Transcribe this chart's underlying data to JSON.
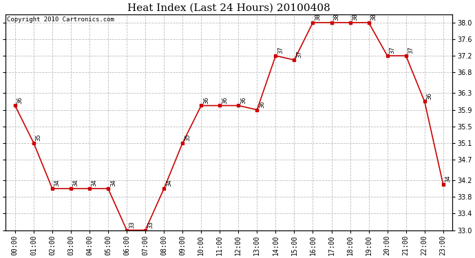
{
  "title": "Heat Index (Last 24 Hours) 20100408",
  "copyright": "Copyright 2010 Cartronics.com",
  "hours": [
    "00:00",
    "01:00",
    "02:00",
    "03:00",
    "04:00",
    "05:00",
    "06:00",
    "07:00",
    "08:00",
    "09:00",
    "10:00",
    "11:00",
    "12:00",
    "13:00",
    "14:00",
    "15:00",
    "16:00",
    "17:00",
    "18:00",
    "19:00",
    "20:00",
    "21:00",
    "22:00",
    "23:00"
  ],
  "values": [
    36.0,
    35.1,
    34.0,
    34.0,
    34.0,
    34.0,
    33.0,
    33.0,
    34.0,
    35.1,
    36.0,
    36.0,
    36.0,
    35.9,
    37.2,
    37.1,
    38.0,
    38.0,
    38.0,
    38.0,
    37.2,
    37.2,
    36.1,
    34.1
  ],
  "labels": [
    "36",
    "35",
    "34",
    "34",
    "34",
    "34",
    "33",
    "33",
    "34",
    "35",
    "36",
    "36",
    "36",
    "36",
    "37",
    "37",
    "38",
    "38",
    "38",
    "38",
    "37",
    "37",
    "36",
    "34"
  ],
  "line_color": "#cc0000",
  "marker_color": "#cc0000",
  "bg_color": "#ffffff",
  "grid_color": "#bbbbbb",
  "ylim_min": 33.0,
  "ylim_max": 38.2,
  "yticks": [
    33.0,
    33.4,
    33.8,
    34.2,
    34.7,
    35.1,
    35.5,
    35.9,
    36.3,
    36.8,
    37.2,
    37.6,
    38.0
  ],
  "title_fontsize": 11,
  "label_fontsize": 6,
  "tick_fontsize": 7,
  "copyright_fontsize": 6.5
}
